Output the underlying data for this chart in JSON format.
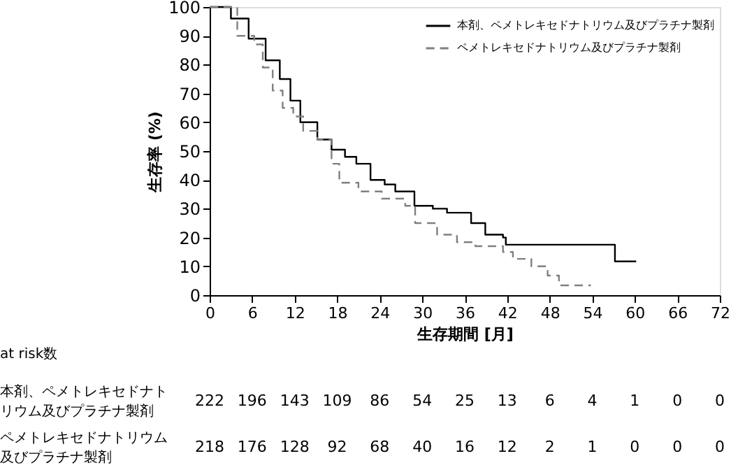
{
  "chart_data": {
    "type": "step",
    "xlabel": "生存期間 [月]",
    "ylabel": "生存率 (%)",
    "xlim": [
      0,
      72
    ],
    "xticks": [
      0,
      6,
      12,
      18,
      24,
      30,
      36,
      42,
      48,
      54,
      60,
      66,
      72
    ],
    "ylim": [
      0,
      100
    ],
    "yticks": [
      0,
      10,
      20,
      30,
      40,
      50,
      60,
      70,
      80,
      90,
      100
    ],
    "grid": false,
    "legend": "top right",
    "series": [
      {
        "name": "本剤、ペメトレキセドナトリウム及びプラチナ製剤",
        "color": "#000000",
        "line_style": "solid",
        "x": [
          0,
          3,
          5.5,
          7.9,
          9.9,
          11.4,
          12.8,
          15.2,
          17.2,
          19.1,
          20.7,
          22.7,
          24.7,
          26.2,
          28.9,
          31.5,
          33.5,
          36.9,
          38.9,
          41.4,
          41.8,
          56.6,
          57.2,
          60.2
        ],
        "values": [
          100,
          96,
          89,
          81.5,
          75,
          67.5,
          60,
          54,
          50.5,
          48,
          45.6,
          40,
          38.4,
          36,
          31,
          30,
          28.6,
          25,
          21,
          20,
          17.5,
          17.5,
          11.7,
          11.7
        ]
      },
      {
        "name": "ペメトレキセドナトリウム及びプラチナ製剤",
        "color": "#808080",
        "line_style": "dashed",
        "x": [
          0,
          3.9,
          6.3,
          7.5,
          8.9,
          10.3,
          11.8,
          13.2,
          15.2,
          17.2,
          18.3,
          21,
          24.3,
          27.6,
          29,
          32.1,
          34.9,
          37.5,
          41.4,
          42.8,
          45.4,
          47.7,
          49.3,
          53.8
        ],
        "values": [
          100,
          90,
          87,
          79,
          71,
          65,
          62,
          57,
          54,
          45.6,
          39,
          36,
          33.5,
          31,
          25,
          21,
          18.4,
          17,
          15,
          12.6,
          10,
          6.8,
          3.4,
          3.4
        ]
      }
    ],
    "annotations": [
      "at risk数",
      "本剤、ペメトレキセドナトリウム及びプラチナ製剤",
      "222",
      "196",
      "143",
      "109",
      "86",
      "54",
      "25",
      "13",
      "6",
      "4",
      "1",
      "0",
      "0",
      "ペメトレキセドナトリウム及びプラチナ製剤",
      "218",
      "176",
      "128",
      "92",
      "68",
      "40",
      "16",
      "12",
      "2",
      "1",
      "0",
      "0",
      "0"
    ]
  }
}
